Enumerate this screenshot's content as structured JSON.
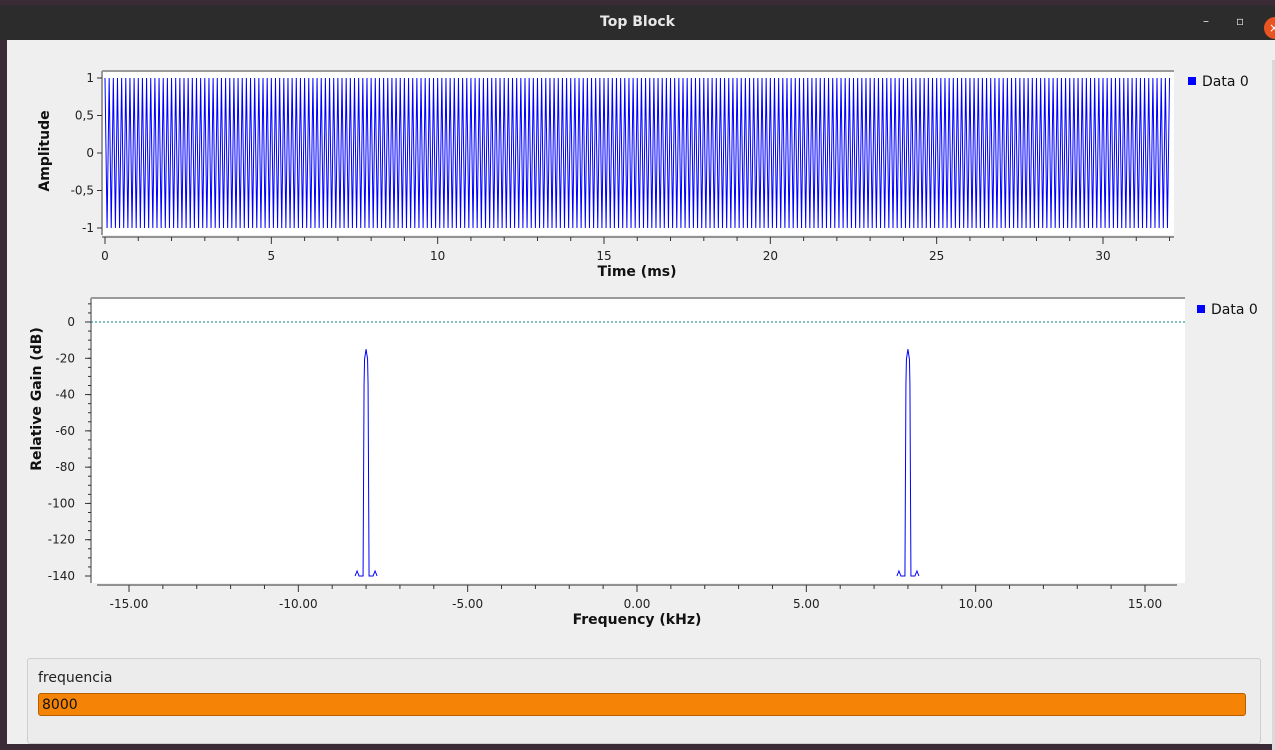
{
  "window": {
    "title": "Top Block",
    "minimize_glyph": "–",
    "maximize_glyph": "▫",
    "close_glyph": "×"
  },
  "time_plot": {
    "legend": "Data 0",
    "ylabel": "Amplitude",
    "xlabel": "Time (ms)",
    "y_ticks": [
      "1",
      "0,5",
      "0",
      "-0,5",
      "-1"
    ],
    "x_ticks": [
      "0",
      "5",
      "10",
      "15",
      "20",
      "25",
      "30"
    ],
    "line_color": "#0000ff"
  },
  "freq_plot": {
    "legend": "Data 0",
    "ylabel": "Relative Gain (dB)",
    "xlabel": "Frequency (kHz)",
    "y_ticks": [
      "0",
      "-20",
      "-40",
      "-60",
      "-80",
      "-100",
      "-120",
      "-140"
    ],
    "x_ticks": [
      "-15.00",
      "-10.00",
      "-5.00",
      "0.00",
      "5.00",
      "10.00",
      "15.00"
    ],
    "line_color": "#0000ff",
    "reference_line_color": "#008080"
  },
  "chart_data": [
    {
      "type": "line",
      "xlabel": "Time (ms)",
      "ylabel": "Amplitude",
      "xlim": [
        0,
        32
      ],
      "ylim": [
        -1,
        1
      ],
      "series": [
        {
          "name": "Data 0",
          "signal": "sine",
          "frequency_khz": 8,
          "amplitude": 1
        }
      ]
    },
    {
      "type": "line",
      "xlabel": "Frequency (kHz)",
      "ylabel": "Relative Gain (dB)",
      "xlim": [
        -16,
        16
      ],
      "ylim": [
        -140,
        10
      ],
      "series": [
        {
          "name": "Data 0",
          "x": [
            -8,
            8
          ],
          "y": [
            -15,
            -15
          ],
          "floor": -140
        }
      ],
      "reference_line_y": 0
    }
  ],
  "control": {
    "label": "frequencia",
    "value": "8000"
  }
}
